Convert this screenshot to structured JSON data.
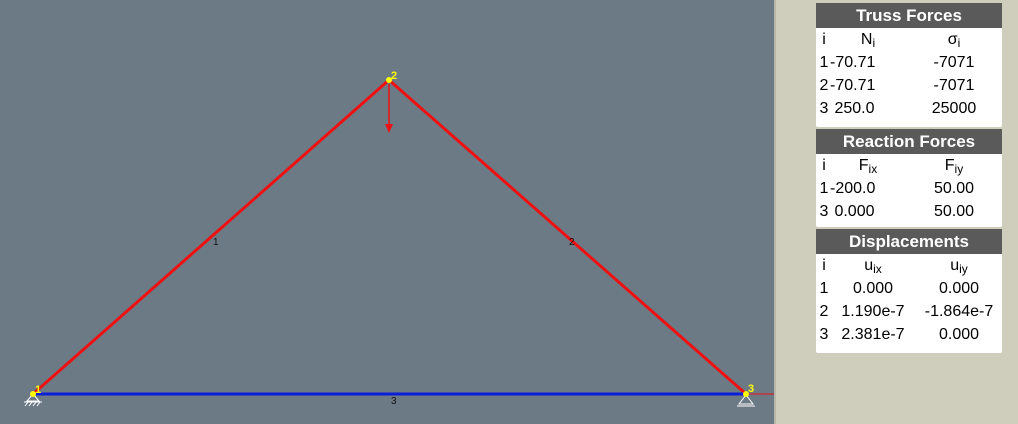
{
  "colors": {
    "canvas_bg": "#6c7a86",
    "sidebar_bg": "#cfcebd",
    "member_tension": "#ee1111",
    "member_compression": "#0a1fd6",
    "node": "#ffff00",
    "load_arrow": "#ee1111",
    "header_bg": "#5a5a5a"
  },
  "truss": {
    "nodes": [
      {
        "id": "1",
        "label": "1",
        "support": "pin"
      },
      {
        "id": "2",
        "label": "2",
        "support": "none"
      },
      {
        "id": "3",
        "label": "3",
        "support": "roller"
      }
    ],
    "members": [
      {
        "id": "1",
        "label": "1",
        "from": "1",
        "to": "2",
        "state": "compression-red"
      },
      {
        "id": "2",
        "label": "2",
        "from": "2",
        "to": "3",
        "state": "compression-red"
      },
      {
        "id": "3",
        "label": "3",
        "from": "1",
        "to": "3",
        "state": "tension-blue"
      }
    ],
    "loads": [
      {
        "node": "2",
        "direction": "down"
      }
    ]
  },
  "truss_forces": {
    "title": "Truss Forces",
    "headers": {
      "i": "i",
      "a": "N",
      "a_sub": "i",
      "b": "σ",
      "b_sub": "i"
    },
    "rows": [
      {
        "i": "1",
        "a": "-70.71",
        "b": "-7071"
      },
      {
        "i": "2",
        "a": "-70.71",
        "b": "-7071"
      },
      {
        "i": "3",
        "a": " 250.0",
        "b": "25000"
      }
    ]
  },
  "reaction_forces": {
    "title": "Reaction Forces",
    "headers": {
      "i": "i",
      "a": "F",
      "a_sub": "ix",
      "b": "F",
      "b_sub": "iy"
    },
    "rows": [
      {
        "i": "1",
        "a": "-200.0",
        "b": "50.00"
      },
      {
        "i": "3",
        "a": " 0.000",
        "b": "50.00"
      }
    ]
  },
  "displacements": {
    "title": "Displacements",
    "headers": {
      "i": "i",
      "a": "u",
      "a_sub": "ix",
      "b": "u",
      "b_sub": "iy"
    },
    "rows": [
      {
        "i": "1",
        "a": "0.000",
        "b": "0.000"
      },
      {
        "i": "2",
        "a": "1.190e-7",
        "b": "-1.864e-7"
      },
      {
        "i": "3",
        "a": "2.381e-7",
        "b": "0.000"
      }
    ]
  }
}
